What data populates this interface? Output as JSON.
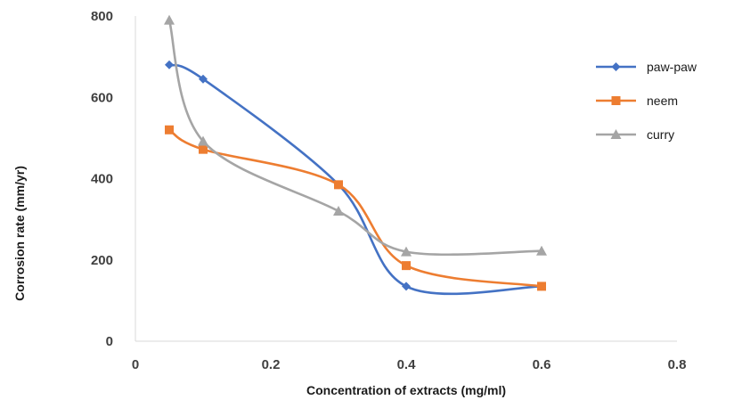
{
  "chart_data": {
    "type": "line",
    "title": "",
    "xlabel": "Concentration of extracts (mg/ml)",
    "ylabel": "Corrosion rate (mm/yr)",
    "xlim": [
      0,
      0.8
    ],
    "ylim": [
      0,
      800
    ],
    "x_ticks": [
      "0",
      "0.2",
      "0.4",
      "0.6",
      "0.8"
    ],
    "y_ticks": [
      "0",
      "200",
      "400",
      "600",
      "800"
    ],
    "x_tick_values": [
      0,
      0.2,
      0.4,
      0.6,
      0.8
    ],
    "y_tick_values": [
      0,
      200,
      400,
      600,
      800
    ],
    "grid": false,
    "smooth": true,
    "legend_position": "right",
    "series": [
      {
        "name": "paw-paw",
        "color": "#4472C4",
        "marker": "diamond",
        "x": [
          0.05,
          0.1,
          0.3,
          0.4,
          0.6
        ],
        "y": [
          680,
          645,
          385,
          135,
          135
        ]
      },
      {
        "name": "neem",
        "color": "#ED7D31",
        "marker": "square",
        "x": [
          0.05,
          0.1,
          0.3,
          0.4,
          0.6
        ],
        "y": [
          520,
          472,
          385,
          186,
          135
        ]
      },
      {
        "name": "curry",
        "color": "#A5A5A5",
        "marker": "triangle",
        "x": [
          0.05,
          0.1,
          0.3,
          0.4,
          0.6
        ],
        "y": [
          790,
          492,
          320,
          220,
          222
        ]
      }
    ]
  }
}
